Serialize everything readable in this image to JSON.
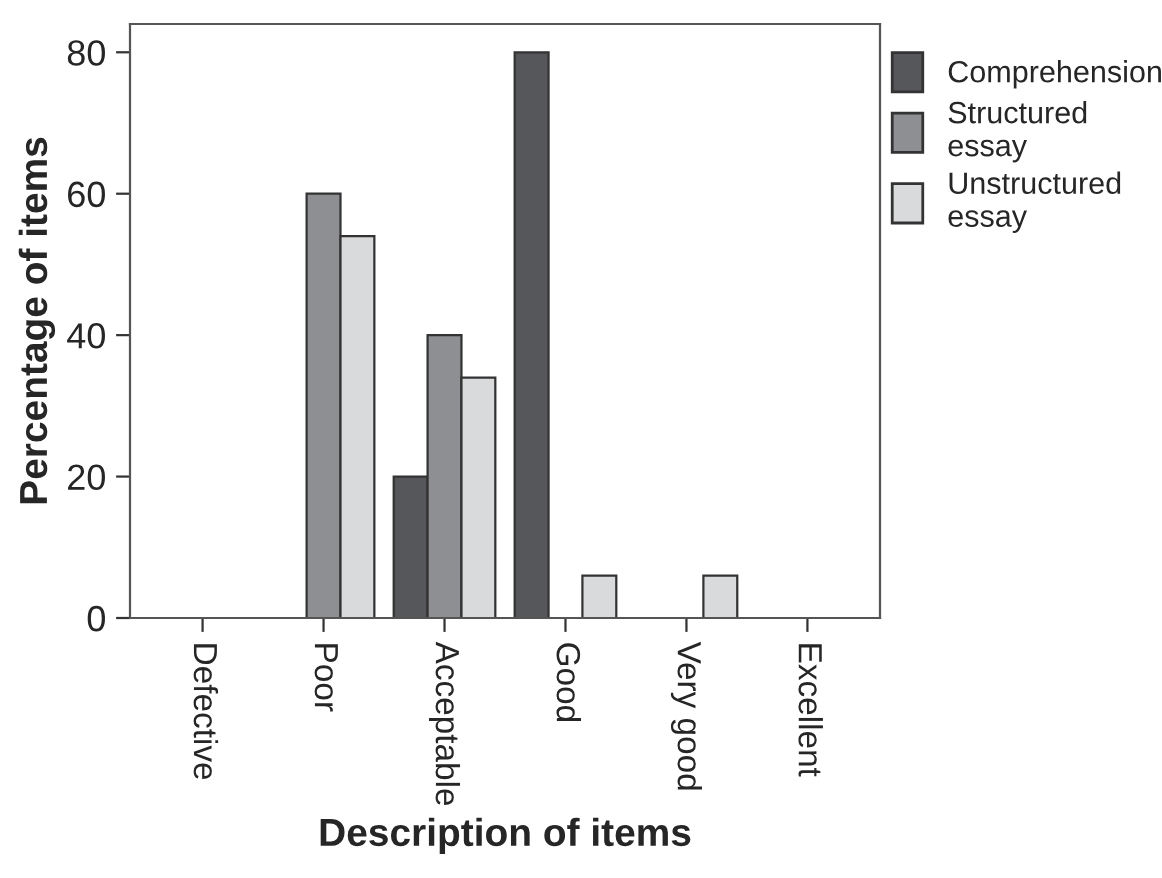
{
  "chart_data": {
    "type": "bar",
    "xlabel": "Description of items",
    "ylabel": "Percentage of items",
    "categories": [
      "Defective",
      "Poor",
      "Acceptable",
      "Good",
      "Very good",
      "Excellent"
    ],
    "series": [
      {
        "name": "Comprehension",
        "color": "#56575b",
        "values": [
          0,
          0,
          20,
          80,
          0,
          0
        ]
      },
      {
        "name": "Structured essay",
        "color": "#8e8f93",
        "values": [
          0,
          60,
          40,
          0,
          0,
          0
        ]
      },
      {
        "name": "Unstructured essay",
        "color": "#d9dadc",
        "values": [
          0,
          54,
          34,
          6,
          6,
          0
        ]
      }
    ],
    "ylim": [
      0,
      84
    ],
    "yticks": [
      0,
      20,
      40,
      60,
      80
    ],
    "grid": false,
    "legend": "right"
  }
}
